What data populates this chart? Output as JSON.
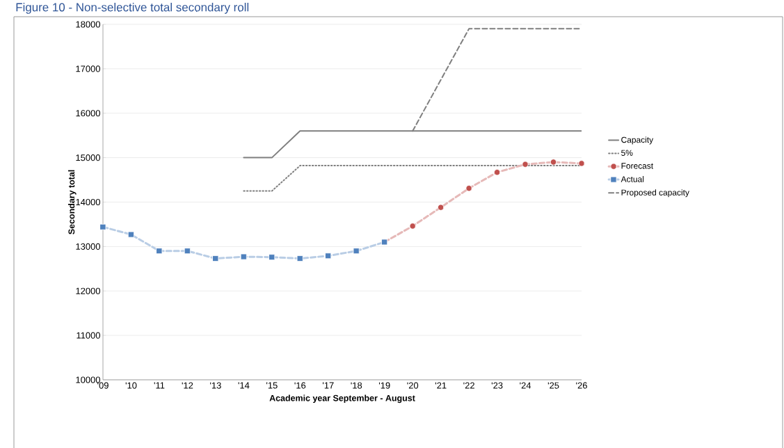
{
  "chart_data": {
    "type": "line",
    "title": "Figure 10 - Non-selective total secondary roll",
    "xlabel": "Academic year September - August",
    "ylabel": "Secondary total",
    "categories": [
      "'09",
      "'10",
      "'11",
      "'12",
      "'13",
      "'14",
      "'15",
      "'16",
      "'17",
      "'18",
      "'19",
      "'20",
      "'21",
      "'22",
      "'23",
      "'24",
      "'25",
      "'26"
    ],
    "ylim": [
      10000,
      18000
    ],
    "yticks": [
      10000,
      11000,
      12000,
      13000,
      14000,
      15000,
      16000,
      17000,
      18000
    ],
    "grid": "y",
    "legend": "right",
    "series": [
      {
        "name": "Capacity",
        "color": "#7f7f7f",
        "line_style": "solid",
        "marker": "none",
        "values": [
          null,
          null,
          null,
          null,
          null,
          15000,
          15000,
          15600,
          15600,
          15600,
          15600,
          15600,
          15600,
          15600,
          15600,
          15600,
          15600,
          15600
        ]
      },
      {
        "name": "5%",
        "color": "#7f7f7f",
        "line_style": "dotted",
        "marker": "none",
        "values": [
          null,
          null,
          null,
          null,
          null,
          14250,
          14250,
          14820,
          14820,
          14820,
          14820,
          14820,
          14820,
          14820,
          14820,
          14820,
          14820,
          14820
        ]
      },
      {
        "name": "Forecast",
        "color": "#c0504d",
        "line_style": "dashed",
        "marker": "circle",
        "values": [
          null,
          null,
          null,
          null,
          null,
          null,
          null,
          null,
          null,
          null,
          13100,
          13460,
          13880,
          14310,
          14670,
          14850,
          14900,
          14870
        ]
      },
      {
        "name": "Actual",
        "color": "#4f81bd",
        "line_style": "dashed",
        "marker": "square",
        "values": [
          13440,
          13270,
          12900,
          12900,
          12730,
          12770,
          12760,
          12730,
          12790,
          12900,
          13100,
          null,
          null,
          null,
          null,
          null,
          null,
          null
        ]
      },
      {
        "name": "Proposed capacity",
        "color": "#7f7f7f",
        "line_style": "dashed",
        "marker": "none",
        "values": [
          null,
          null,
          null,
          null,
          null,
          null,
          null,
          null,
          null,
          null,
          null,
          15600,
          16750,
          17900,
          17900,
          17900,
          17900,
          17900
        ]
      }
    ]
  }
}
